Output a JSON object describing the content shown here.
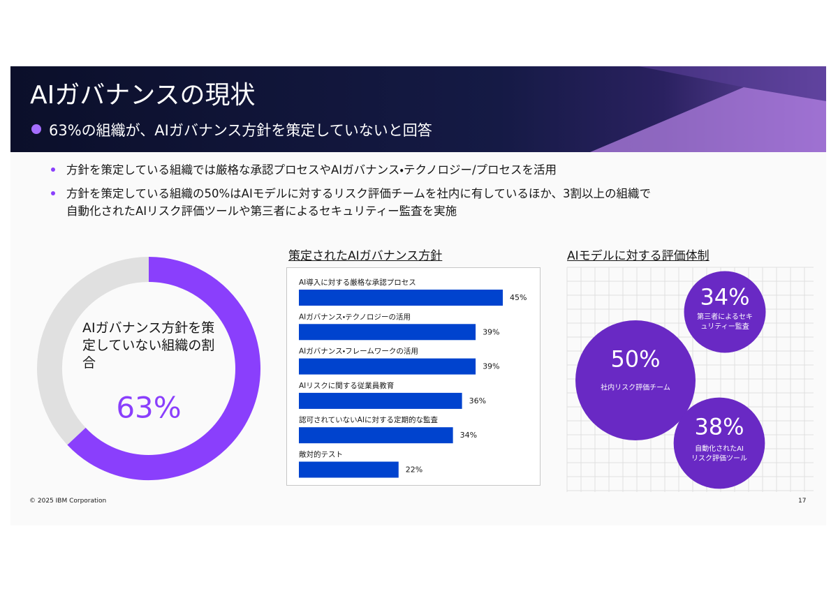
{
  "header": {
    "title": "AIガバナンスの現状",
    "subtitle": "63%の組織が、AIガバナンス方針を策定していないと回答"
  },
  "bullets": [
    [
      "方針を策定している組織では厳格な承認プロセスやAIガバナンス・テクノロジー/プロセスを活用"
    ],
    [
      "方針を策定している組織の50%はAIモデルに対するリスク評価チームを社内に有しているほか、3割以上の組織で",
      "自動化されたAIリスク評価ツールや第三者によるセキュリティー監査を実施"
    ]
  ],
  "chart_data": [
    {
      "type": "donut",
      "label": "AIガバナンス方針を策定していない組織の割合",
      "values": [
        63,
        37
      ],
      "value_labels": [
        "63%",
        null
      ],
      "colors": [
        "#8a3ffc",
        "#e0e0e0"
      ]
    },
    {
      "type": "hbar",
      "title": "策定されたAIガバナンス方針",
      "categories": [
        "AI導入に対する厳格な承認プロセス",
        "AIガバナンス・テクノロジーの活用",
        "AIガバナンス・フレームワークの活用",
        "AIリスクに関する従業員教育",
        "認可されていないAIに対する定期的な監査",
        "敵対的テスト"
      ],
      "values": [
        45,
        39,
        39,
        36,
        34,
        22
      ],
      "value_labels": [
        "45%",
        "39%",
        "39%",
        "36%",
        "34%",
        "22%"
      ],
      "color": "#0043ce"
    },
    {
      "type": "bubble",
      "title": "AIモデルに対する評価体制",
      "categories": [
        "社内リスク評価チーム",
        "第三者によるセキュリティー監査",
        "自動化されたAIリスク評価ツール"
      ],
      "values": [
        50,
        34,
        38
      ],
      "value_labels": [
        "50%",
        "34%",
        "38%"
      ],
      "color": "#6929c4"
    }
  ],
  "footer": {
    "copyright": "© 2025 IBM Corporation",
    "page": "17"
  }
}
